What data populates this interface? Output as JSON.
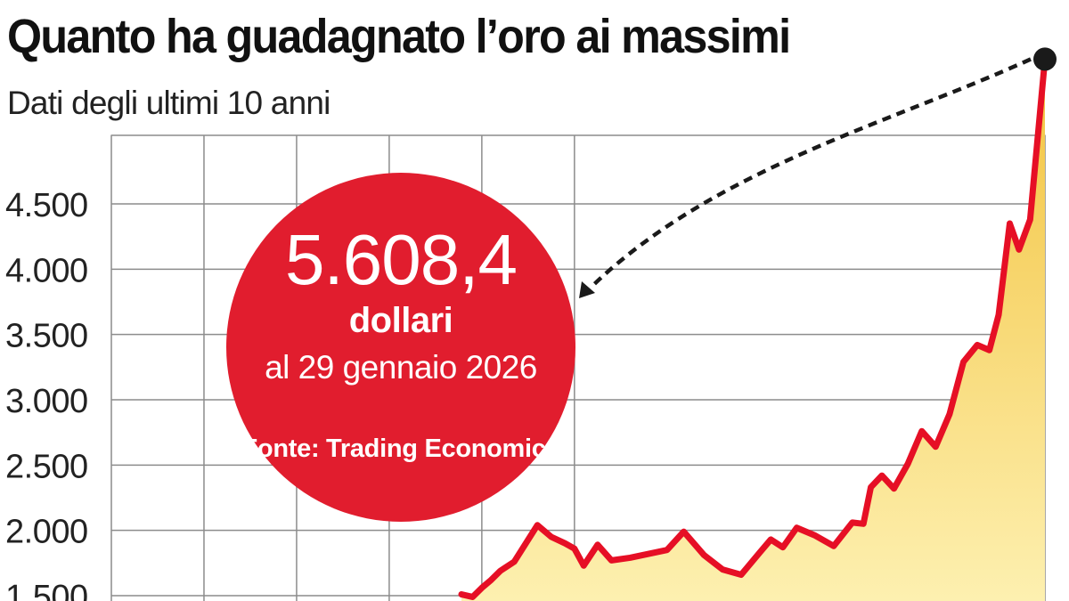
{
  "title": "Quanto ha guadagnato l’oro ai massimi",
  "subtitle": "Dati degli ultimi 10 anni",
  "colors": {
    "accent_red": "#e11d2e",
    "line_red": "#e60f25",
    "fill_top": "#f3c33f",
    "fill_bottom": "#fdf0b0",
    "grid": "#8c8c8c",
    "text": "#222222"
  },
  "callout": {
    "value": "5.608,4",
    "unit": "dollari",
    "date": "al 29 gennaio 2026",
    "source": "Fonte: Trading Economics"
  },
  "chart_data": {
    "type": "area",
    "title": "Quanto ha guadagnato l’oro ai massimi",
    "subtitle": "Dati degli ultimi 10 anni",
    "xlabel": "",
    "ylabel": "",
    "ylim": [
      1450,
      5000
    ],
    "xlim": [
      2016,
      2026.08
    ],
    "x_vertical_grid_at": [
      2016,
      2017,
      2018,
      2019,
      2020,
      2021
    ],
    "y_ticks": [
      1500,
      2000,
      2500,
      3000,
      3500,
      4000,
      4500
    ],
    "y_tick_labels": [
      "1.500",
      "2.000",
      "2.500",
      "3.000",
      "3.500",
      "4.000",
      "4.500"
    ],
    "grid": true,
    "series": [
      {
        "values": [
          [
            2019.78,
            1510
          ],
          [
            2019.9,
            1490
          ],
          [
            2020.0,
            1560
          ],
          [
            2020.1,
            1620
          ],
          [
            2020.2,
            1690
          ],
          [
            2020.35,
            1760
          ],
          [
            2020.6,
            2040
          ],
          [
            2020.75,
            1950
          ],
          [
            2020.9,
            1900
          ],
          [
            2021.0,
            1860
          ],
          [
            2021.1,
            1730
          ],
          [
            2021.25,
            1890
          ],
          [
            2021.4,
            1770
          ],
          [
            2021.6,
            1790
          ],
          [
            2021.8,
            1820
          ],
          [
            2022.0,
            1850
          ],
          [
            2022.18,
            1990
          ],
          [
            2022.4,
            1810
          ],
          [
            2022.6,
            1700
          ],
          [
            2022.8,
            1660
          ],
          [
            2023.0,
            1830
          ],
          [
            2023.12,
            1930
          ],
          [
            2023.25,
            1870
          ],
          [
            2023.4,
            2020
          ],
          [
            2023.6,
            1960
          ],
          [
            2023.8,
            1880
          ],
          [
            2024.0,
            2060
          ],
          [
            2024.12,
            2050
          ],
          [
            2024.2,
            2330
          ],
          [
            2024.32,
            2420
          ],
          [
            2024.45,
            2320
          ],
          [
            2024.6,
            2510
          ],
          [
            2024.75,
            2760
          ],
          [
            2024.9,
            2640
          ],
          [
            2025.05,
            2890
          ],
          [
            2025.2,
            3290
          ],
          [
            2025.35,
            3420
          ],
          [
            2025.48,
            3380
          ],
          [
            2025.58,
            3650
          ],
          [
            2025.7,
            4350
          ],
          [
            2025.8,
            4150
          ],
          [
            2025.92,
            4380
          ],
          [
            2026.08,
            5608.4
          ]
        ]
      }
    ],
    "highlight": {
      "x": 2026.08,
      "y": 5608.4
    }
  }
}
